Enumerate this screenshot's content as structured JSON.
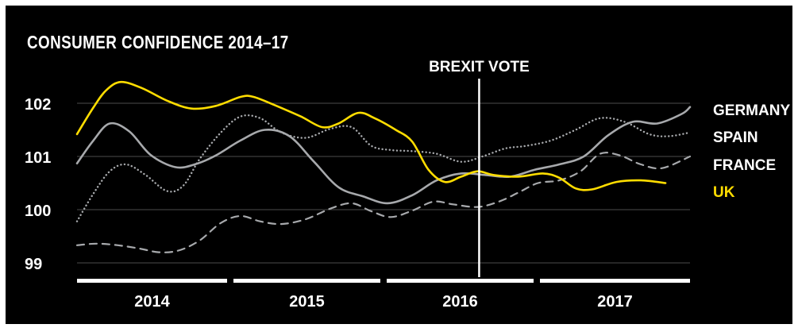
{
  "chart_data": {
    "type": "line",
    "title": "CONSUMER CONFIDENCE 2014–17",
    "xlabel": "",
    "ylabel": "",
    "ylim": [
      98.85,
      102.0
    ],
    "xlim": [
      2014.0,
      2017.75
    ],
    "y_ticks": [
      "99",
      "100",
      "101",
      "102"
    ],
    "x_categories": [
      "2014",
      "2015",
      "2016",
      "2017"
    ],
    "grid": "horizontal",
    "annotation": {
      "label": "BREXIT VOTE",
      "x": 2016.46
    },
    "series": [
      {
        "name": "GERMANY",
        "color": "#a7a9ac",
        "style": "solid",
        "points": [
          [
            2014.0,
            100.87
          ],
          [
            2014.1,
            101.3
          ],
          [
            2014.2,
            101.62
          ],
          [
            2014.32,
            101.47
          ],
          [
            2014.45,
            101.03
          ],
          [
            2014.6,
            100.8
          ],
          [
            2014.72,
            100.85
          ],
          [
            2014.85,
            101.02
          ],
          [
            2015.0,
            101.3
          ],
          [
            2015.15,
            101.5
          ],
          [
            2015.3,
            101.38
          ],
          [
            2015.45,
            100.9
          ],
          [
            2015.6,
            100.42
          ],
          [
            2015.75,
            100.25
          ],
          [
            2015.9,
            100.12
          ],
          [
            2016.05,
            100.27
          ],
          [
            2016.2,
            100.55
          ],
          [
            2016.35,
            100.68
          ],
          [
            2016.5,
            100.65
          ],
          [
            2016.65,
            100.62
          ],
          [
            2016.8,
            100.75
          ],
          [
            2016.95,
            100.85
          ],
          [
            2017.1,
            101.0
          ],
          [
            2017.25,
            101.4
          ],
          [
            2017.4,
            101.65
          ],
          [
            2017.55,
            101.62
          ],
          [
            2017.7,
            101.8
          ],
          [
            2017.75,
            101.93
          ]
        ]
      },
      {
        "name": "SPAIN",
        "color": "#a7a9ac",
        "style": "dotted",
        "points": [
          [
            2014.0,
            99.78
          ],
          [
            2014.1,
            100.3
          ],
          [
            2014.2,
            100.72
          ],
          [
            2014.3,
            100.85
          ],
          [
            2014.42,
            100.65
          ],
          [
            2014.55,
            100.35
          ],
          [
            2014.65,
            100.45
          ],
          [
            2014.75,
            100.95
          ],
          [
            2014.88,
            101.45
          ],
          [
            2015.0,
            101.75
          ],
          [
            2015.12,
            101.72
          ],
          [
            2015.25,
            101.45
          ],
          [
            2015.4,
            101.35
          ],
          [
            2015.55,
            101.52
          ],
          [
            2015.68,
            101.55
          ],
          [
            2015.8,
            101.2
          ],
          [
            2015.92,
            101.12
          ],
          [
            2016.05,
            101.1
          ],
          [
            2016.2,
            101.05
          ],
          [
            2016.35,
            100.9
          ],
          [
            2016.48,
            101.0
          ],
          [
            2016.62,
            101.15
          ],
          [
            2016.75,
            101.2
          ],
          [
            2016.9,
            101.3
          ],
          [
            2017.05,
            101.5
          ],
          [
            2017.2,
            101.72
          ],
          [
            2017.35,
            101.65
          ],
          [
            2017.5,
            101.42
          ],
          [
            2017.62,
            101.38
          ],
          [
            2017.75,
            101.45
          ]
        ]
      },
      {
        "name": "FRANCE",
        "color": "#a7a9ac",
        "style": "dashed",
        "points": [
          [
            2014.0,
            99.33
          ],
          [
            2014.12,
            99.36
          ],
          [
            2014.25,
            99.33
          ],
          [
            2014.38,
            99.27
          ],
          [
            2014.5,
            99.2
          ],
          [
            2014.62,
            99.23
          ],
          [
            2014.75,
            99.42
          ],
          [
            2014.88,
            99.75
          ],
          [
            2015.0,
            99.88
          ],
          [
            2015.12,
            99.78
          ],
          [
            2015.25,
            99.73
          ],
          [
            2015.4,
            99.82
          ],
          [
            2015.55,
            100.02
          ],
          [
            2015.68,
            100.12
          ],
          [
            2015.8,
            99.97
          ],
          [
            2015.92,
            99.86
          ],
          [
            2016.05,
            99.98
          ],
          [
            2016.18,
            100.15
          ],
          [
            2016.3,
            100.1
          ],
          [
            2016.45,
            100.05
          ],
          [
            2016.58,
            100.15
          ],
          [
            2016.7,
            100.32
          ],
          [
            2016.82,
            100.5
          ],
          [
            2016.95,
            100.55
          ],
          [
            2017.08,
            100.72
          ],
          [
            2017.2,
            101.05
          ],
          [
            2017.32,
            101.02
          ],
          [
            2017.45,
            100.85
          ],
          [
            2017.58,
            100.78
          ],
          [
            2017.75,
            101.0
          ]
        ]
      },
      {
        "name": "UK",
        "color": "#ffdd00",
        "style": "solid",
        "points": [
          [
            2014.0,
            101.42
          ],
          [
            2014.1,
            101.92
          ],
          [
            2014.18,
            102.25
          ],
          [
            2014.27,
            102.4
          ],
          [
            2014.4,
            102.28
          ],
          [
            2014.55,
            102.05
          ],
          [
            2014.7,
            101.9
          ],
          [
            2014.85,
            101.95
          ],
          [
            2015.0,
            102.12
          ],
          [
            2015.08,
            102.12
          ],
          [
            2015.22,
            101.95
          ],
          [
            2015.37,
            101.75
          ],
          [
            2015.5,
            101.55
          ],
          [
            2015.6,
            101.62
          ],
          [
            2015.72,
            101.82
          ],
          [
            2015.82,
            101.72
          ],
          [
            2015.95,
            101.5
          ],
          [
            2016.05,
            101.28
          ],
          [
            2016.15,
            100.75
          ],
          [
            2016.25,
            100.52
          ],
          [
            2016.35,
            100.62
          ],
          [
            2016.45,
            100.72
          ],
          [
            2016.55,
            100.65
          ],
          [
            2016.7,
            100.62
          ],
          [
            2016.85,
            100.68
          ],
          [
            2016.95,
            100.6
          ],
          [
            2017.05,
            100.4
          ],
          [
            2017.15,
            100.38
          ],
          [
            2017.3,
            100.52
          ],
          [
            2017.45,
            100.55
          ],
          [
            2017.6,
            100.5
          ]
        ]
      }
    ]
  }
}
